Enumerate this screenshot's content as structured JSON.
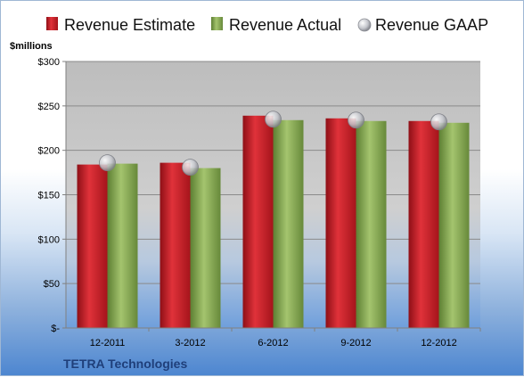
{
  "chart_data": {
    "type": "bar",
    "unit_label": "$millions",
    "company": "TETRA Technologies",
    "categories": [
      "12-2011",
      "3-2012",
      "6-2012",
      "9-2012",
      "12-2012"
    ],
    "series": [
      {
        "name": "Revenue Estimate",
        "values": [
          184,
          186,
          239,
          236,
          233
        ],
        "color": "#c8202a"
      },
      {
        "name": "Revenue Actual",
        "values": [
          185,
          180,
          234,
          233,
          231
        ],
        "color": "#8db05a"
      },
      {
        "name": "Revenue GAAP",
        "values": [
          186,
          181,
          235,
          234,
          232
        ],
        "color": "#c9cbd3"
      }
    ],
    "ylim": [
      0,
      300
    ],
    "yticks": [
      {
        "value": 0,
        "label": "$-"
      },
      {
        "value": 50,
        "label": "$50"
      },
      {
        "value": 100,
        "label": "$100"
      },
      {
        "value": 150,
        "label": "$150"
      },
      {
        "value": 200,
        "label": "$200"
      },
      {
        "value": 250,
        "label": "$250"
      },
      {
        "value": 300,
        "label": "$300"
      }
    ],
    "grid": true,
    "legend": "top"
  }
}
